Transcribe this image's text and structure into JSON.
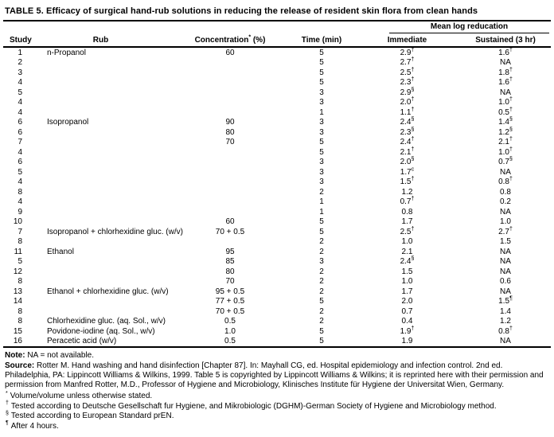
{
  "title": "TABLE 5. Efficacy of surgical hand-rub solutions in reducing the release of resident skin flora from clean hands",
  "table": {
    "col_headers": {
      "study": "Study",
      "rub": "Rub",
      "concentration": "Concentration",
      "concentration_sup": "*",
      "concentration_unit": " (%)",
      "time": "Time (min)",
      "group_header": "Mean log reducation",
      "immediate": "Immediate",
      "sustained": "Sustained (3 hr)"
    },
    "rows": [
      {
        "study": "1",
        "rub": "n-Propanol",
        "conc": "60",
        "time": "5",
        "imm": "2.9",
        "imm_sup": "†",
        "sus": "1.6",
        "sus_sup": "†"
      },
      {
        "study": "2",
        "rub": "",
        "conc": "",
        "time": "5",
        "imm": "2.7",
        "imm_sup": "†",
        "sus": "NA",
        "sus_sup": ""
      },
      {
        "study": "3",
        "rub": "",
        "conc": "",
        "time": "5",
        "imm": "2.5",
        "imm_sup": "†",
        "sus": "1.8",
        "sus_sup": "†"
      },
      {
        "study": "4",
        "rub": "",
        "conc": "",
        "time": "5",
        "imm": "2.3",
        "imm_sup": "†",
        "sus": "1.6",
        "sus_sup": "†"
      },
      {
        "study": "5",
        "rub": "",
        "conc": "",
        "time": "3",
        "imm": "2.9",
        "imm_sup": "§",
        "sus": "NA",
        "sus_sup": ""
      },
      {
        "study": "4",
        "rub": "",
        "conc": "",
        "time": "3",
        "imm": "2.0",
        "imm_sup": "†",
        "sus": "1.0",
        "sus_sup": "†"
      },
      {
        "study": "4",
        "rub": "",
        "conc": "",
        "time": "1",
        "imm": "1.1",
        "imm_sup": "†",
        "sus": "0.5",
        "sus_sup": "†"
      },
      {
        "study": "6",
        "rub": "Isopropanol",
        "conc": "90",
        "time": "3",
        "imm": "2.4",
        "imm_sup": "§",
        "sus": "1.4",
        "sus_sup": "§"
      },
      {
        "study": "6",
        "rub": "",
        "conc": "80",
        "time": "3",
        "imm": "2.3",
        "imm_sup": "§",
        "sus": "1.2",
        "sus_sup": "§"
      },
      {
        "study": "7",
        "rub": "",
        "conc": "70",
        "time": "5",
        "imm": "2.4",
        "imm_sup": "†",
        "sus": "2.1",
        "sus_sup": "†"
      },
      {
        "study": "4",
        "rub": "",
        "conc": "",
        "time": "5",
        "imm": "2.1",
        "imm_sup": "†",
        "sus": "1.0",
        "sus_sup": "†"
      },
      {
        "study": "6",
        "rub": "",
        "conc": "",
        "time": "3",
        "imm": "2.0",
        "imm_sup": "§",
        "sus": "0.7",
        "sus_sup": "§"
      },
      {
        "study": "5",
        "rub": "",
        "conc": "",
        "time": "3",
        "imm": "1.7",
        "imm_sup": "c",
        "sus": "NA",
        "sus_sup": ""
      },
      {
        "study": "4",
        "rub": "",
        "conc": "",
        "time": "3",
        "imm": "1.5",
        "imm_sup": "†",
        "sus": "0.8",
        "sus_sup": "†"
      },
      {
        "study": "8",
        "rub": "",
        "conc": "",
        "time": "2",
        "imm": "1.2",
        "imm_sup": "",
        "sus": "0.8",
        "sus_sup": ""
      },
      {
        "study": "4",
        "rub": "",
        "conc": "",
        "time": "1",
        "imm": "0.7",
        "imm_sup": "†",
        "sus": "0.2",
        "sus_sup": ""
      },
      {
        "study": "9",
        "rub": "",
        "conc": "",
        "time": "1",
        "imm": "0.8",
        "imm_sup": "",
        "sus": "NA",
        "sus_sup": ""
      },
      {
        "study": "10",
        "rub": "",
        "conc": "60",
        "time": "5",
        "imm": "1.7",
        "imm_sup": "",
        "sus": "1.0",
        "sus_sup": ""
      },
      {
        "study": "7",
        "rub": "Isopropanol + chlorhexidine gluc. (w/v)",
        "conc": "70 + 0.5",
        "time": "5",
        "imm": "2.5",
        "imm_sup": "†",
        "sus": "2.7",
        "sus_sup": "†"
      },
      {
        "study": "8",
        "rub": "",
        "conc": "",
        "time": "2",
        "imm": "1.0",
        "imm_sup": "",
        "sus": "1.5",
        "sus_sup": ""
      },
      {
        "study": "11",
        "rub": "Ethanol",
        "conc": "95",
        "time": "2",
        "imm": "2.1",
        "imm_sup": "",
        "sus": "NA",
        "sus_sup": ""
      },
      {
        "study": "5",
        "rub": "",
        "conc": "85",
        "time": "3",
        "imm": "2.4",
        "imm_sup": "§",
        "sus": "NA",
        "sus_sup": ""
      },
      {
        "study": "12",
        "rub": "",
        "conc": "80",
        "time": "2",
        "imm": "1.5",
        "imm_sup": "",
        "sus": "NA",
        "sus_sup": ""
      },
      {
        "study": "8",
        "rub": "",
        "conc": "70",
        "time": "2",
        "imm": "1.0",
        "imm_sup": "",
        "sus": "0.6",
        "sus_sup": ""
      },
      {
        "study": "13",
        "rub": "Ethanol + chlorhexidine gluc. (w/v)",
        "conc": "95 + 0.5",
        "time": "2",
        "imm": "1.7",
        "imm_sup": "",
        "sus": "NA",
        "sus_sup": ""
      },
      {
        "study": "14",
        "rub": "",
        "conc": "77 + 0.5",
        "time": "5",
        "imm": "2.0",
        "imm_sup": "",
        "sus": "1.5",
        "sus_sup": "¶"
      },
      {
        "study": "8",
        "rub": "",
        "conc": "70 + 0.5",
        "time": "2",
        "imm": "0.7",
        "imm_sup": "",
        "sus": "1.4",
        "sus_sup": ""
      },
      {
        "study": "8",
        "rub": "Chlorhexidine gluc. (aq. Sol., w/v)",
        "conc": "0.5",
        "time": "2",
        "imm": "0.4",
        "imm_sup": "",
        "sus": "1.2",
        "sus_sup": ""
      },
      {
        "study": "15",
        "rub": "Povidone-iodine (aq. Sol., w/v)",
        "conc": "1.0",
        "time": "5",
        "imm": "1.9",
        "imm_sup": "†",
        "sus": "0.8",
        "sus_sup": "†"
      },
      {
        "study": "16",
        "rub": "Peracetic acid (w/v)",
        "conc": "0.5",
        "time": "5",
        "imm": "1.9",
        "imm_sup": "",
        "sus": "NA",
        "sus_sup": ""
      }
    ]
  },
  "notes": {
    "note_label": "Note:",
    "note_text": " NA = not available.",
    "source_label": "Source:",
    "source_text": " Rotter M. Hand washing and hand disinfection [Chapter 87]. In: Mayhall CG, ed. Hospital epidemiology and infection control. 2nd ed. Philadelphia, PA: Lippincott Williams & Wilkins, 1999. Table 5 is copyrighted by Lippincott Williams & Wilkins; it is reprinted here with their permission and permission from Manfred Rotter, M.D., Professor of Hygiene and Microbiology, Klinisches Institute für Hygiene der Universitat Wien, Germany.",
    "footnotes": [
      {
        "sym": "*",
        "text": "Volume/volume unless otherwise stated."
      },
      {
        "sym": "†",
        "text": "Tested according to Deutsche Gesellschaft fur Hygiene, and Mikrobiologic (DGHM)-German Society of Hygiene and Microbiology method."
      },
      {
        "sym": "§",
        "text": "Tested according to European Standard prEN."
      },
      {
        "sym": "¶",
        "text": "After 4 hours."
      }
    ]
  }
}
